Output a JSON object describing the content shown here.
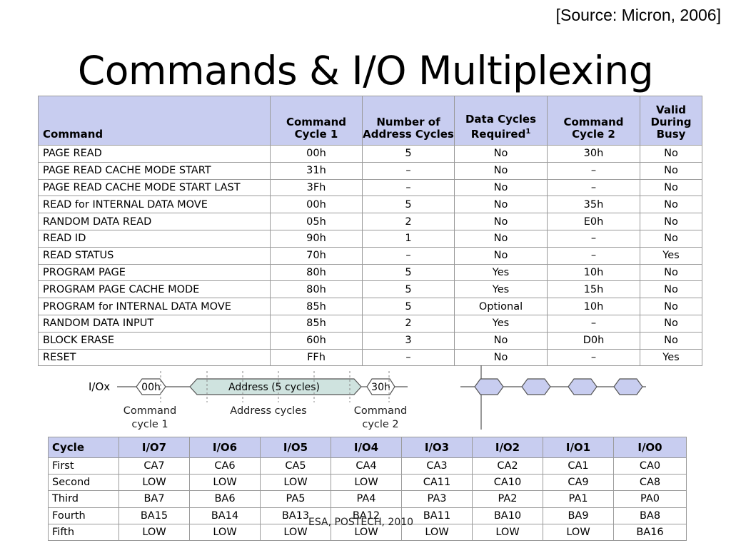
{
  "source": "[Source: Micron, 2006]",
  "title": "Commands & I/O Multiplexing",
  "commands_table": {
    "headers": [
      "Command",
      "Command Cycle 1",
      "Number of Address Cycles",
      "Data Cycles Required",
      "Command Cycle 2",
      "Valid During Busy"
    ],
    "header_footnote": "1",
    "rows": [
      [
        "PAGE READ",
        "00h",
        "5",
        "No",
        "30h",
        "No"
      ],
      [
        "PAGE READ CACHE MODE START",
        "31h",
        "–",
        "No",
        "–",
        "No"
      ],
      [
        "PAGE READ CACHE MODE START LAST",
        "3Fh",
        "–",
        "No",
        "–",
        "No"
      ],
      [
        "READ for INTERNAL DATA MOVE",
        "00h",
        "5",
        "No",
        "35h",
        "No"
      ],
      [
        "RANDOM DATA READ",
        "05h",
        "2",
        "No",
        "E0h",
        "No"
      ],
      [
        "READ ID",
        "90h",
        "1",
        "No",
        "–",
        "No"
      ],
      [
        "READ STATUS",
        "70h",
        "–",
        "No",
        "–",
        "Yes"
      ],
      [
        "PROGRAM PAGE",
        "80h",
        "5",
        "Yes",
        "10h",
        "No"
      ],
      [
        "PROGRAM PAGE CACHE MODE",
        "80h",
        "5",
        "Yes",
        "15h",
        "No"
      ],
      [
        "PROGRAM for INTERNAL DATA MOVE",
        "85h",
        "5",
        "Optional",
        "10h",
        "No"
      ],
      [
        "RANDOM DATA INPUT",
        "85h",
        "2",
        "Yes",
        "–",
        "No"
      ],
      [
        "BLOCK ERASE",
        "60h",
        "3",
        "No",
        "D0h",
        "No"
      ],
      [
        "RESET",
        "FFh",
        "–",
        "No",
        "–",
        "Yes"
      ]
    ]
  },
  "diagram": {
    "signal_label": "I/Ox",
    "cmd1": "00h",
    "address": "Address (5 cycles)",
    "cmd2": "30h",
    "label_cmd1_line1": "Command",
    "label_cmd1_line2": "cycle 1",
    "label_address": "Address cycles",
    "label_cmd2_line1": "Command",
    "label_cmd2_line2": "cycle 2",
    "colors": {
      "address_fill": "#cfe3df",
      "data_fill": "#c8cdf0"
    }
  },
  "cycle_table": {
    "headers": [
      "Cycle",
      "I/O7",
      "I/O6",
      "I/O5",
      "I/O4",
      "I/O3",
      "I/O2",
      "I/O1",
      "I/O0"
    ],
    "rows": [
      [
        "First",
        "CA7",
        "CA6",
        "CA5",
        "CA4",
        "CA3",
        "CA2",
        "CA1",
        "CA0"
      ],
      [
        "Second",
        "LOW",
        "LOW",
        "LOW",
        "LOW",
        "CA11",
        "CA10",
        "CA9",
        "CA8"
      ],
      [
        "Third",
        "BA7",
        "BA6",
        "PA5",
        "PA4",
        "PA3",
        "PA2",
        "PA1",
        "PA0"
      ],
      [
        "Fourth",
        "BA15",
        "BA14",
        "BA13",
        "BA12",
        "BA11",
        "BA10",
        "BA9",
        "BA8"
      ],
      [
        "Fifth",
        "LOW",
        "LOW",
        "LOW",
        "LOW",
        "LOW",
        "LOW",
        "LOW",
        "BA16"
      ]
    ]
  },
  "footer": "ESA, POSTECH, 2010",
  "colors": {
    "header_bg": "#c8cdf0"
  }
}
